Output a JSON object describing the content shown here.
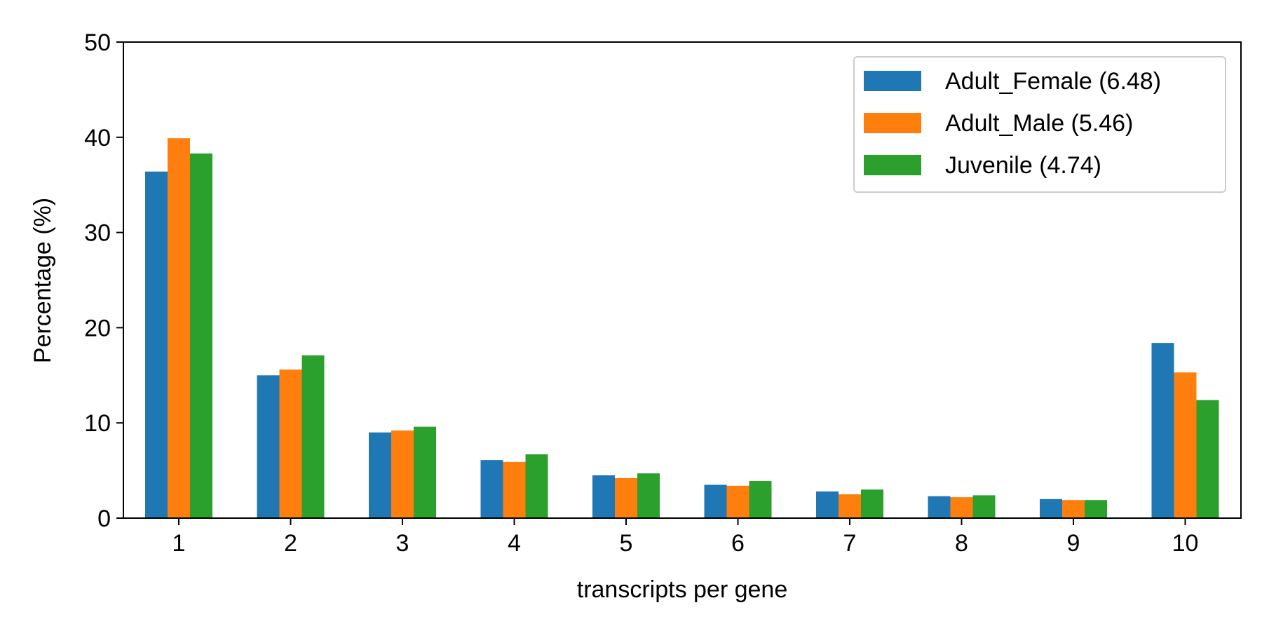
{
  "chart_data": {
    "type": "bar",
    "xlabel": "transcripts per gene",
    "ylabel": "Percentage (%)",
    "ylim": [
      0,
      50
    ],
    "yticks": [
      "0",
      "10",
      "20",
      "30",
      "40",
      "50"
    ],
    "categories": [
      "1",
      "2",
      "3",
      "4",
      "5",
      "6",
      "7",
      "8",
      "9",
      "10"
    ],
    "series": [
      {
        "name": "Adult_Female (6.48)",
        "color": "#1f77b4",
        "values": [
          36.4,
          15.0,
          9.0,
          6.1,
          4.5,
          3.5,
          2.8,
          2.3,
          2.0,
          18.4
        ]
      },
      {
        "name": "Adult_Male (5.46)",
        "color": "#ff7f0e",
        "values": [
          39.9,
          15.6,
          9.2,
          5.9,
          4.2,
          3.4,
          2.5,
          2.2,
          1.9,
          15.3
        ]
      },
      {
        "name": "Juvenile (4.74)",
        "color": "#2ca02c",
        "values": [
          38.3,
          17.1,
          9.6,
          6.7,
          4.7,
          3.9,
          3.0,
          2.4,
          1.9,
          12.4
        ]
      }
    ],
    "legend": "top-right",
    "grid": false
  }
}
